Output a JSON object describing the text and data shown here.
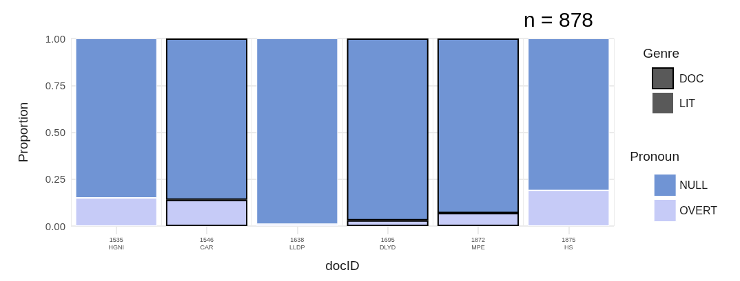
{
  "chart_data": {
    "type": "bar",
    "title": "n = 878",
    "xlabel": "docID",
    "ylabel": "Proportion",
    "legend_title": [
      "Genre",
      "Pronoun"
    ],
    "annotations": [
      "DOC",
      "LIT"
    ],
    "categories": [
      "1535\nHGNI",
      "1546\nCAR",
      "1638\nLLDP",
      "1695\nDLYD",
      "1872\nMPE",
      "1875\nHS"
    ],
    "stacked": true,
    "ylim": [
      0,
      1
    ],
    "yticks": [
      {
        "value": 0,
        "label": "0.00"
      },
      {
        "value": 0.25,
        "label": "0.25"
      },
      {
        "value": 0.5,
        "label": "0.50"
      },
      {
        "value": 0.75,
        "label": "0.75"
      },
      {
        "value": 1,
        "label": "1.00"
      }
    ],
    "grid": true,
    "legend": "right",
    "series": [
      {
        "name": "OVERT",
        "color": "#c6cbf7",
        "values": [
          0.15,
          null,
          0.01,
          null,
          null,
          0.19
        ]
      },
      {
        "color": "#c6cbf7",
        "line_style": "solid",
        "values": [
          null,
          0.14,
          null,
          0.03,
          0.07,
          null
        ]
      },
      {
        "name": "NULL",
        "color": "#7094d4",
        "values": [
          0.85,
          null,
          0.99,
          null,
          null,
          0.81
        ]
      },
      {
        "color": "#7094d4",
        "line_style": "solid",
        "values": [
          null,
          0.86,
          null,
          0.97,
          0.93,
          null
        ]
      }
    ]
  }
}
